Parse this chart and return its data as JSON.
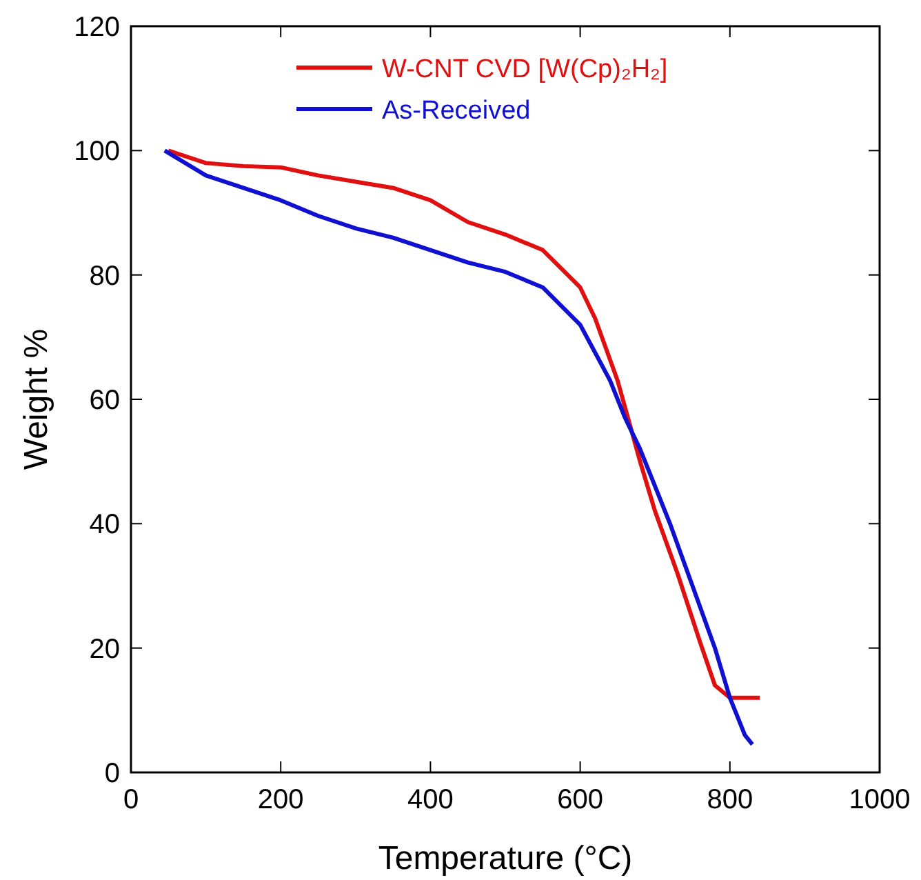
{
  "chart_data": {
    "type": "line",
    "xlabel": "Temperature (°C)",
    "ylabel": "Weight %",
    "xlim": [
      0,
      1000
    ],
    "ylim": [
      0,
      120
    ],
    "xticks": [
      0,
      200,
      400,
      600,
      800,
      1000
    ],
    "yticks": [
      0,
      20,
      40,
      60,
      80,
      100,
      120
    ],
    "grid": false,
    "legend": "top right",
    "marker": "none",
    "line_style": "solid",
    "series": [
      {
        "name": "W-CNT CVD [W(Cp)₂H₂]",
        "color": "#e01010",
        "x": [
          50,
          100,
          150,
          200,
          250,
          300,
          350,
          400,
          450,
          500,
          550,
          600,
          620,
          650,
          680,
          700,
          730,
          760,
          780,
          800,
          840
        ],
        "values": [
          100,
          98,
          97.5,
          97.3,
          96,
          95,
          94,
          92,
          88.5,
          86.5,
          84,
          78,
          73,
          63,
          50,
          42,
          32,
          21,
          14,
          12,
          12
        ]
      },
      {
        "name": "As-Received",
        "color": "#1010d0",
        "x": [
          45,
          100,
          150,
          200,
          250,
          300,
          350,
          400,
          450,
          500,
          550,
          600,
          640,
          660,
          680,
          700,
          720,
          750,
          780,
          800,
          820,
          830
        ],
        "values": [
          100,
          96,
          94,
          92,
          89.5,
          87.5,
          86,
          84,
          82,
          80.5,
          78,
          72,
          63,
          57,
          52,
          46,
          40,
          30,
          20,
          12,
          6,
          4.5
        ]
      }
    ]
  }
}
